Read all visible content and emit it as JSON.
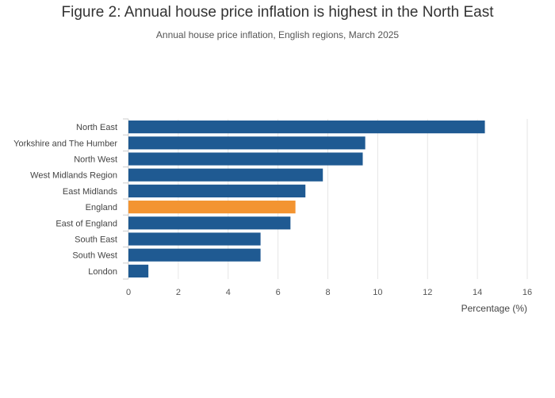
{
  "chart_data": {
    "type": "bar",
    "orientation": "horizontal",
    "title": "Figure 2: Annual house price inflation is highest in the North East",
    "subtitle": "Annual house price inflation, English regions, March 2025",
    "categories": [
      "North East",
      "Yorkshire and The Humber",
      "North West",
      "West Midlands Region",
      "East Midlands",
      "England",
      "East of England",
      "South East",
      "South West",
      "London"
    ],
    "values": [
      14.3,
      9.5,
      9.4,
      7.8,
      7.1,
      6.7,
      6.5,
      5.3,
      5.3,
      0.8
    ],
    "highlight": "England",
    "colors": {
      "default": "#1f5a92",
      "highlight": "#f39431",
      "grid": "#e6e6e6"
    },
    "xlabel": "Percentage (%)",
    "ylabel": "",
    "xlim": [
      0,
      16
    ],
    "xticks": [
      0,
      2,
      4,
      6,
      8,
      10,
      12,
      14,
      16
    ],
    "grid": true
  }
}
